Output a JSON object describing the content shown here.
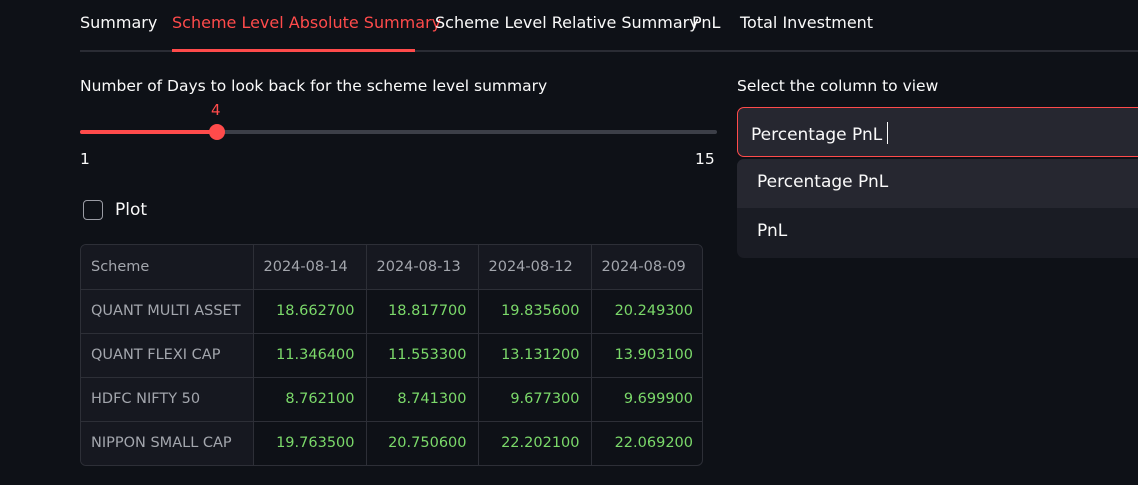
{
  "tabs": [
    {
      "label": "Summary"
    },
    {
      "label": "Scheme Level Absolute Summary"
    },
    {
      "label": "Scheme Level Relative Summary"
    },
    {
      "label": "PnL"
    },
    {
      "label": "Total Investment"
    }
  ],
  "active_tab": "Scheme Level Absolute Summary",
  "slider": {
    "label": "Number of Days to look back for the scheme level summary",
    "value": "4",
    "min": "1",
    "max": "15"
  },
  "checkbox": {
    "label": "Plot",
    "checked": false
  },
  "table": {
    "headers": [
      "Scheme",
      "2024-08-14",
      "2024-08-13",
      "2024-08-12",
      "2024-08-09"
    ],
    "rows": [
      [
        "QUANT MULTI ASSET",
        "18.662700",
        "18.817700",
        "19.835600",
        "20.249300"
      ],
      [
        "QUANT FLEXI CAP",
        "11.346400",
        "11.553300",
        "13.131200",
        "13.903100"
      ],
      [
        "HDFC NIFTY 50",
        "8.762100",
        "8.741300",
        "9.677300",
        "9.699900"
      ],
      [
        "NIPPON SMALL CAP",
        "19.763500",
        "20.750600",
        "22.202100",
        "22.069200"
      ]
    ]
  },
  "select": {
    "label": "Select the column to view",
    "value": "Percentage PnL",
    "options": [
      "Percentage PnL",
      "PnL"
    ]
  },
  "colors": {
    "accent": "#ff4b4b",
    "positive": "#7bd96a",
    "background": "#0e1117"
  }
}
